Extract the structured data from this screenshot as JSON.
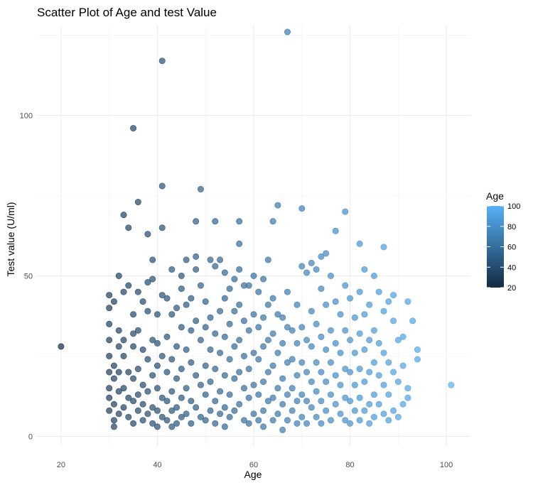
{
  "chart_data": {
    "type": "scatter",
    "title": "Scatter Plot of Age and test Value",
    "xlabel": "Age",
    "ylabel": "Test value (U/ml)",
    "xlim": [
      15,
      105
    ],
    "ylim": [
      -3,
      128
    ],
    "x_ticks": [
      20,
      40,
      60,
      80,
      100
    ],
    "y_ticks": [
      0,
      50,
      100
    ],
    "grid": true,
    "legend": {
      "title": "Age",
      "position": "right",
      "type": "colorbar",
      "range": [
        20,
        100
      ],
      "ticks": [
        20,
        40,
        60,
        80,
        100
      ],
      "low_color": "#132B43",
      "high_color": "#56B1F7"
    },
    "point_alpha": 0.7,
    "points": [
      [
        20,
        28
      ],
      [
        30,
        44
      ],
      [
        30,
        40
      ],
      [
        30,
        35
      ],
      [
        30,
        30
      ],
      [
        30,
        25
      ],
      [
        30,
        20
      ],
      [
        30,
        15
      ],
      [
        30,
        12
      ],
      [
        30,
        8
      ],
      [
        31,
        42
      ],
      [
        31,
        22
      ],
      [
        31,
        18
      ],
      [
        31,
        10
      ],
      [
        31,
        5
      ],
      [
        31,
        3
      ],
      [
        32,
        50
      ],
      [
        32,
        33
      ],
      [
        32,
        28
      ],
      [
        32,
        20
      ],
      [
        32,
        14
      ],
      [
        32,
        7
      ],
      [
        33,
        69
      ],
      [
        33,
        45
      ],
      [
        33,
        30
      ],
      [
        33,
        25
      ],
      [
        33,
        15
      ],
      [
        33,
        9
      ],
      [
        34,
        65
      ],
      [
        34,
        47
      ],
      [
        34,
        20
      ],
      [
        34,
        12
      ],
      [
        34,
        6
      ],
      [
        35,
        96
      ],
      [
        35,
        38
      ],
      [
        35,
        32
      ],
      [
        35,
        28
      ],
      [
        35,
        18
      ],
      [
        35,
        11
      ],
      [
        35,
        4
      ],
      [
        36,
        73
      ],
      [
        36,
        45
      ],
      [
        36,
        33
      ],
      [
        36,
        21
      ],
      [
        36,
        13
      ],
      [
        36,
        8
      ],
      [
        37,
        42
      ],
      [
        37,
        27
      ],
      [
        37,
        16
      ],
      [
        37,
        10
      ],
      [
        37,
        5
      ],
      [
        38,
        63
      ],
      [
        38,
        48
      ],
      [
        38,
        39
      ],
      [
        38,
        24
      ],
      [
        38,
        14
      ],
      [
        38,
        7
      ],
      [
        39,
        55
      ],
      [
        39,
        49
      ],
      [
        39,
        30
      ],
      [
        39,
        19
      ],
      [
        39,
        9
      ],
      [
        39,
        4
      ],
      [
        40,
        38
      ],
      [
        40,
        29
      ],
      [
        40,
        22
      ],
      [
        40,
        15
      ],
      [
        40,
        8
      ],
      [
        40,
        3
      ],
      [
        41,
        117
      ],
      [
        41,
        78
      ],
      [
        41,
        65
      ],
      [
        41,
        44
      ],
      [
        41,
        25
      ],
      [
        41,
        12
      ],
      [
        41,
        6
      ],
      [
        42,
        43
      ],
      [
        42,
        31
      ],
      [
        42,
        20
      ],
      [
        42,
        11
      ],
      [
        42,
        5
      ],
      [
        43,
        52
      ],
      [
        43,
        38
      ],
      [
        43,
        24
      ],
      [
        43,
        14
      ],
      [
        43,
        8
      ],
      [
        43,
        3
      ],
      [
        44,
        40
      ],
      [
        44,
        28
      ],
      [
        44,
        18
      ],
      [
        44,
        9
      ],
      [
        44,
        4
      ],
      [
        45,
        50
      ],
      [
        45,
        46
      ],
      [
        45,
        34
      ],
      [
        45,
        21
      ],
      [
        45,
        12
      ],
      [
        45,
        6
      ],
      [
        46,
        55
      ],
      [
        46,
        41
      ],
      [
        46,
        27
      ],
      [
        46,
        15
      ],
      [
        46,
        7
      ],
      [
        47,
        43
      ],
      [
        47,
        33
      ],
      [
        47,
        23
      ],
      [
        47,
        11
      ],
      [
        47,
        4
      ],
      [
        48,
        67
      ],
      [
        48,
        56
      ],
      [
        48,
        52
      ],
      [
        48,
        36
      ],
      [
        48,
        19
      ],
      [
        48,
        9
      ],
      [
        49,
        77
      ],
      [
        49,
        47
      ],
      [
        49,
        30
      ],
      [
        49,
        16
      ],
      [
        49,
        6
      ],
      [
        50,
        42
      ],
      [
        50,
        34
      ],
      [
        50,
        22
      ],
      [
        50,
        13
      ],
      [
        50,
        5
      ],
      [
        51,
        55
      ],
      [
        51,
        37
      ],
      [
        51,
        27
      ],
      [
        51,
        17
      ],
      [
        51,
        8
      ],
      [
        52,
        67
      ],
      [
        52,
        53
      ],
      [
        52,
        32
      ],
      [
        52,
        21
      ],
      [
        52,
        11
      ],
      [
        52,
        4
      ],
      [
        53,
        55
      ],
      [
        53,
        39
      ],
      [
        53,
        26
      ],
      [
        53,
        14
      ],
      [
        53,
        7
      ],
      [
        54,
        51
      ],
      [
        54,
        43
      ],
      [
        54,
        31
      ],
      [
        54,
        19
      ],
      [
        54,
        9
      ],
      [
        54,
        3
      ],
      [
        55,
        46
      ],
      [
        55,
        35
      ],
      [
        55,
        24
      ],
      [
        55,
        13
      ],
      [
        55,
        6
      ],
      [
        56,
        49
      ],
      [
        56,
        39
      ],
      [
        56,
        28
      ],
      [
        56,
        18
      ],
      [
        56,
        8
      ],
      [
        57,
        67
      ],
      [
        57,
        60
      ],
      [
        57,
        52
      ],
      [
        57,
        41
      ],
      [
        57,
        30
      ],
      [
        57,
        20
      ],
      [
        57,
        10
      ],
      [
        58,
        47
      ],
      [
        58,
        36
      ],
      [
        58,
        25
      ],
      [
        58,
        15
      ],
      [
        58,
        5
      ],
      [
        59,
        47
      ],
      [
        59,
        33
      ],
      [
        59,
        21
      ],
      [
        59,
        12
      ],
      [
        59,
        4
      ],
      [
        60,
        50
      ],
      [
        60,
        38
      ],
      [
        60,
        26
      ],
      [
        60,
        16
      ],
      [
        60,
        7
      ],
      [
        61,
        45
      ],
      [
        61,
        34
      ],
      [
        61,
        24
      ],
      [
        61,
        13
      ],
      [
        61,
        5
      ],
      [
        62,
        49
      ],
      [
        62,
        37
      ],
      [
        62,
        28
      ],
      [
        62,
        17
      ],
      [
        62,
        8
      ],
      [
        62,
        3
      ],
      [
        63,
        55
      ],
      [
        63,
        41
      ],
      [
        63,
        30
      ],
      [
        63,
        20
      ],
      [
        63,
        11
      ],
      [
        64,
        67
      ],
      [
        64,
        43
      ],
      [
        64,
        32
      ],
      [
        64,
        22
      ],
      [
        64,
        12
      ],
      [
        64,
        5
      ],
      [
        65,
        72
      ],
      [
        65,
        38
      ],
      [
        65,
        26
      ],
      [
        65,
        15
      ],
      [
        65,
        7
      ],
      [
        66,
        37
      ],
      [
        66,
        29
      ],
      [
        66,
        18
      ],
      [
        66,
        10
      ],
      [
        66,
        2
      ],
      [
        67,
        126
      ],
      [
        67,
        45
      ],
      [
        67,
        34
      ],
      [
        67,
        23
      ],
      [
        67,
        13
      ],
      [
        67,
        5
      ],
      [
        68,
        33
      ],
      [
        68,
        24
      ],
      [
        68,
        15
      ],
      [
        68,
        8
      ],
      [
        69,
        41
      ],
      [
        69,
        29
      ],
      [
        69,
        19
      ],
      [
        69,
        11
      ],
      [
        69,
        4
      ],
      [
        70,
        71
      ],
      [
        70,
        53
      ],
      [
        70,
        34
      ],
      [
        70,
        23
      ],
      [
        70,
        13
      ],
      [
        70,
        6
      ],
      [
        71,
        51
      ],
      [
        71,
        30
      ],
      [
        71,
        20
      ],
      [
        71,
        11
      ],
      [
        71,
        4
      ],
      [
        72,
        54
      ],
      [
        72,
        39
      ],
      [
        72,
        28
      ],
      [
        72,
        17
      ],
      [
        72,
        9
      ],
      [
        73,
        52
      ],
      [
        73,
        35
      ],
      [
        73,
        23
      ],
      [
        73,
        14
      ],
      [
        73,
        6
      ],
      [
        74,
        56
      ],
      [
        74,
        46
      ],
      [
        74,
        31
      ],
      [
        74,
        20
      ],
      [
        74,
        11
      ],
      [
        74,
        4
      ],
      [
        75,
        57
      ],
      [
        75,
        41
      ],
      [
        75,
        27
      ],
      [
        75,
        17
      ],
      [
        75,
        8
      ],
      [
        76,
        50
      ],
      [
        76,
        33
      ],
      [
        76,
        23
      ],
      [
        76,
        13
      ],
      [
        76,
        5
      ],
      [
        77,
        64
      ],
      [
        77,
        42
      ],
      [
        77,
        29
      ],
      [
        77,
        19
      ],
      [
        77,
        10
      ],
      [
        78,
        38
      ],
      [
        78,
        26
      ],
      [
        78,
        16
      ],
      [
        78,
        7
      ],
      [
        79,
        70
      ],
      [
        79,
        47
      ],
      [
        79,
        33
      ],
      [
        79,
        21
      ],
      [
        79,
        12
      ],
      [
        79,
        5
      ],
      [
        80,
        43
      ],
      [
        80,
        30
      ],
      [
        80,
        20
      ],
      [
        80,
        11
      ],
      [
        80,
        4
      ],
      [
        81,
        37
      ],
      [
        81,
        26
      ],
      [
        81,
        16
      ],
      [
        81,
        8
      ],
      [
        82,
        60
      ],
      [
        82,
        45
      ],
      [
        82,
        32
      ],
      [
        82,
        21
      ],
      [
        82,
        12
      ],
      [
        82,
        5
      ],
      [
        83,
        52
      ],
      [
        83,
        38
      ],
      [
        83,
        27
      ],
      [
        83,
        17
      ],
      [
        83,
        8
      ],
      [
        84,
        41
      ],
      [
        84,
        30
      ],
      [
        84,
        20
      ],
      [
        84,
        10
      ],
      [
        84,
        4
      ],
      [
        85,
        50
      ],
      [
        85,
        33
      ],
      [
        85,
        23
      ],
      [
        85,
        13
      ],
      [
        85,
        6
      ],
      [
        86,
        45
      ],
      [
        86,
        29
      ],
      [
        86,
        19
      ],
      [
        86,
        10
      ],
      [
        87,
        59
      ],
      [
        87,
        39
      ],
      [
        87,
        26
      ],
      [
        87,
        16
      ],
      [
        87,
        7
      ],
      [
        88,
        42
      ],
      [
        88,
        23
      ],
      [
        88,
        13
      ],
      [
        88,
        5
      ],
      [
        89,
        44
      ],
      [
        89,
        36
      ],
      [
        89,
        20
      ],
      [
        89,
        8
      ],
      [
        90,
        30
      ],
      [
        90,
        17
      ],
      [
        90,
        6
      ],
      [
        91,
        31
      ],
      [
        91,
        22
      ],
      [
        91,
        10
      ],
      [
        92,
        42
      ],
      [
        92,
        15
      ],
      [
        92,
        12
      ],
      [
        93,
        36
      ],
      [
        94,
        27
      ],
      [
        94,
        24
      ],
      [
        101,
        16
      ]
    ]
  }
}
